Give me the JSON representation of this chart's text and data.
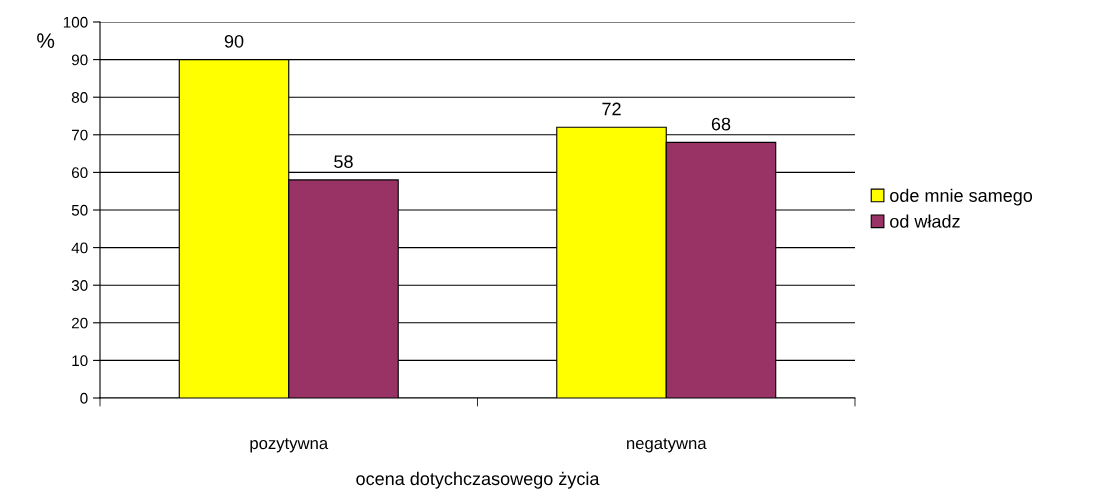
{
  "chart_data": {
    "type": "bar",
    "xlabel": "ocena dotychczasowego życia",
    "ylabel": "%",
    "categories": [
      "pozytywna",
      "negatywna"
    ],
    "series": [
      {
        "name": "ode mnie samego",
        "color": "#ffff00",
        "values": [
          90,
          72
        ]
      },
      {
        "name": "od władz",
        "color": "#993366",
        "values": [
          58,
          68
        ]
      }
    ],
    "ylim": [
      0,
      100
    ],
    "yticks": [
      0,
      10,
      20,
      30,
      40,
      50,
      60,
      70,
      80,
      90,
      100
    ],
    "grid": "y",
    "legend": "right",
    "data_labels": true
  }
}
